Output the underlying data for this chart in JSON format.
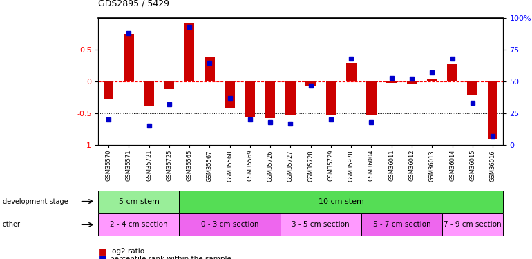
{
  "title": "GDS2895 / 5429",
  "samples": [
    "GSM35570",
    "GSM35571",
    "GSM35721",
    "GSM35725",
    "GSM35565",
    "GSM35567",
    "GSM35568",
    "GSM35569",
    "GSM35726",
    "GSM35727",
    "GSM35728",
    "GSM35729",
    "GSM35978",
    "GSM36004",
    "GSM36011",
    "GSM36012",
    "GSM36013",
    "GSM36014",
    "GSM36015",
    "GSM36016"
  ],
  "log2_ratio": [
    -0.28,
    0.75,
    -0.38,
    -0.12,
    0.92,
    0.39,
    -0.42,
    -0.55,
    -0.58,
    -0.52,
    -0.07,
    -0.52,
    0.29,
    -0.52,
    -0.02,
    -0.03,
    0.04,
    0.28,
    -0.22,
    -0.9
  ],
  "percentile": [
    20,
    88,
    15,
    32,
    93,
    65,
    37,
    20,
    18,
    17,
    47,
    20,
    68,
    18,
    53,
    52,
    57,
    68,
    33,
    7
  ],
  "dev_stage_groups": [
    {
      "label": "5 cm stem",
      "start": 0,
      "end": 3,
      "color": "#99EE99"
    },
    {
      "label": "10 cm stem",
      "start": 4,
      "end": 19,
      "color": "#55DD55"
    }
  ],
  "other_groups": [
    {
      "label": "2 - 4 cm section",
      "start": 0,
      "end": 3,
      "color": "#FF99FF"
    },
    {
      "label": "0 - 3 cm section",
      "start": 4,
      "end": 8,
      "color": "#EE66EE"
    },
    {
      "label": "3 - 5 cm section",
      "start": 9,
      "end": 12,
      "color": "#FF99FF"
    },
    {
      "label": "5 - 7 cm section",
      "start": 13,
      "end": 16,
      "color": "#EE66EE"
    },
    {
      "label": "7 - 9 cm section",
      "start": 17,
      "end": 19,
      "color": "#FF99FF"
    }
  ],
  "bar_color": "#CC0000",
  "dot_color": "#0000CC",
  "background_color": "#ffffff",
  "ylim_left": [
    -1.0,
    1.0
  ],
  "ylim_right": [
    0,
    100
  ],
  "yticks_left": [
    -1,
    -0.5,
    0,
    0.5
  ],
  "yticks_right": [
    0,
    25,
    50,
    75,
    100
  ]
}
